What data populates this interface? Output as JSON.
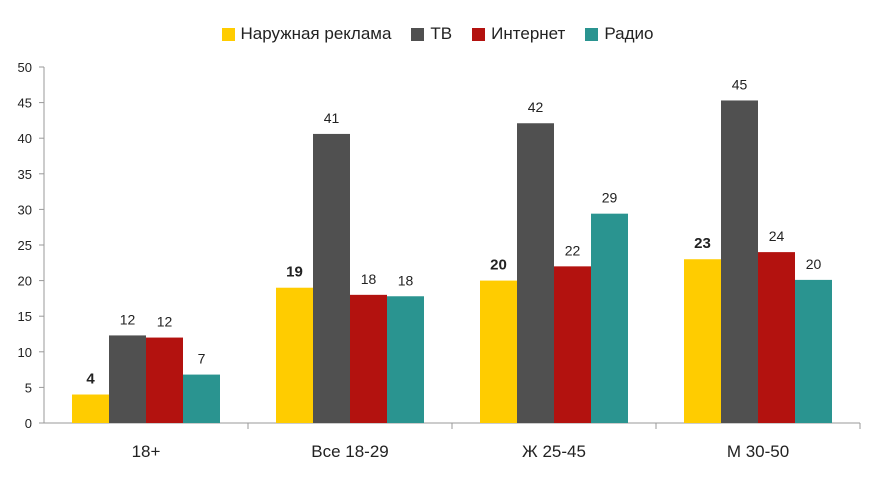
{
  "chart_data": {
    "type": "bar",
    "title": "",
    "xlabel": "",
    "ylabel": "",
    "ylim": [
      0,
      50
    ],
    "yticks": [
      0,
      5,
      10,
      15,
      20,
      25,
      30,
      35,
      40,
      45,
      50
    ],
    "grid": false,
    "legend_position": "top-center",
    "categories": [
      "18+",
      "Все 18-29",
      "Ж 25-45",
      "М 30-50"
    ],
    "series": [
      {
        "name": "Наружная реклама",
        "color": "#ffcc00",
        "values": [
          4,
          19,
          20,
          23
        ],
        "value_labels": [
          "4",
          "19",
          "20",
          "23"
        ],
        "bold_labels": true
      },
      {
        "name": "ТВ",
        "color": "#505050",
        "values": [
          12.3,
          40.6,
          42.1,
          45.3
        ],
        "value_labels": [
          "12",
          "41",
          "42",
          "45"
        ],
        "bold_labels": false
      },
      {
        "name": "Интернет",
        "color": "#b3120f",
        "values": [
          12,
          18,
          22,
          24
        ],
        "value_labels": [
          "12",
          "18",
          "22",
          "24"
        ],
        "bold_labels": false
      },
      {
        "name": "Радио",
        "color": "#2a9490",
        "values": [
          6.8,
          17.8,
          29.4,
          20.1
        ],
        "value_labels": [
          "7",
          "18",
          "29",
          "20"
        ],
        "bold_labels": false
      }
    ]
  }
}
